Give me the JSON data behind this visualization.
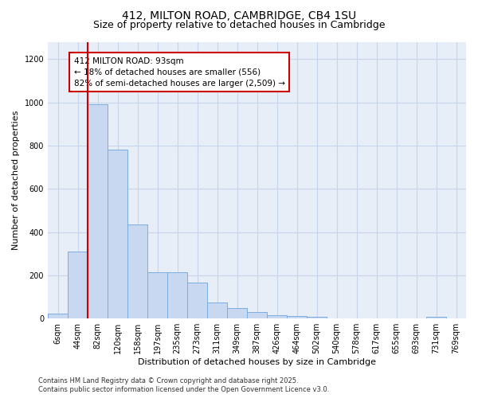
{
  "title_line1": "412, MILTON ROAD, CAMBRIDGE, CB4 1SU",
  "title_line2": "Size of property relative to detached houses in Cambridge",
  "xlabel": "Distribution of detached houses by size in Cambridge",
  "ylabel": "Number of detached properties",
  "categories": [
    "6sqm",
    "44sqm",
    "82sqm",
    "120sqm",
    "158sqm",
    "197sqm",
    "235sqm",
    "273sqm",
    "311sqm",
    "349sqm",
    "387sqm",
    "426sqm",
    "464sqm",
    "502sqm",
    "540sqm",
    "578sqm",
    "617sqm",
    "655sqm",
    "693sqm",
    "731sqm",
    "769sqm"
  ],
  "values": [
    22,
    310,
    990,
    780,
    435,
    215,
    215,
    165,
    75,
    48,
    30,
    15,
    12,
    8,
    0,
    0,
    0,
    0,
    0,
    8,
    0
  ],
  "bar_color": "#c8d8f0",
  "bar_edge_color": "#7aade0",
  "vline_color": "#cc0000",
  "vline_x": 1.575,
  "annotation_text": "412 MILTON ROAD: 93sqm\n← 18% of detached houses are smaller (556)\n82% of semi-detached houses are larger (2,509) →",
  "annotation_box_edgecolor": "#cc0000",
  "annotation_bg": "#ffffff",
  "ylim": [
    0,
    1280
  ],
  "yticks": [
    0,
    200,
    400,
    600,
    800,
    1000,
    1200
  ],
  "grid_color": "#c8d4e8",
  "bg_color": "#e8eef8",
  "footer_text": "Contains HM Land Registry data © Crown copyright and database right 2025.\nContains public sector information licensed under the Open Government Licence v3.0.",
  "title_fontsize": 10,
  "subtitle_fontsize": 9,
  "axis_label_fontsize": 8,
  "tick_fontsize": 7,
  "annotation_fontsize": 7.5,
  "footer_fontsize": 6
}
